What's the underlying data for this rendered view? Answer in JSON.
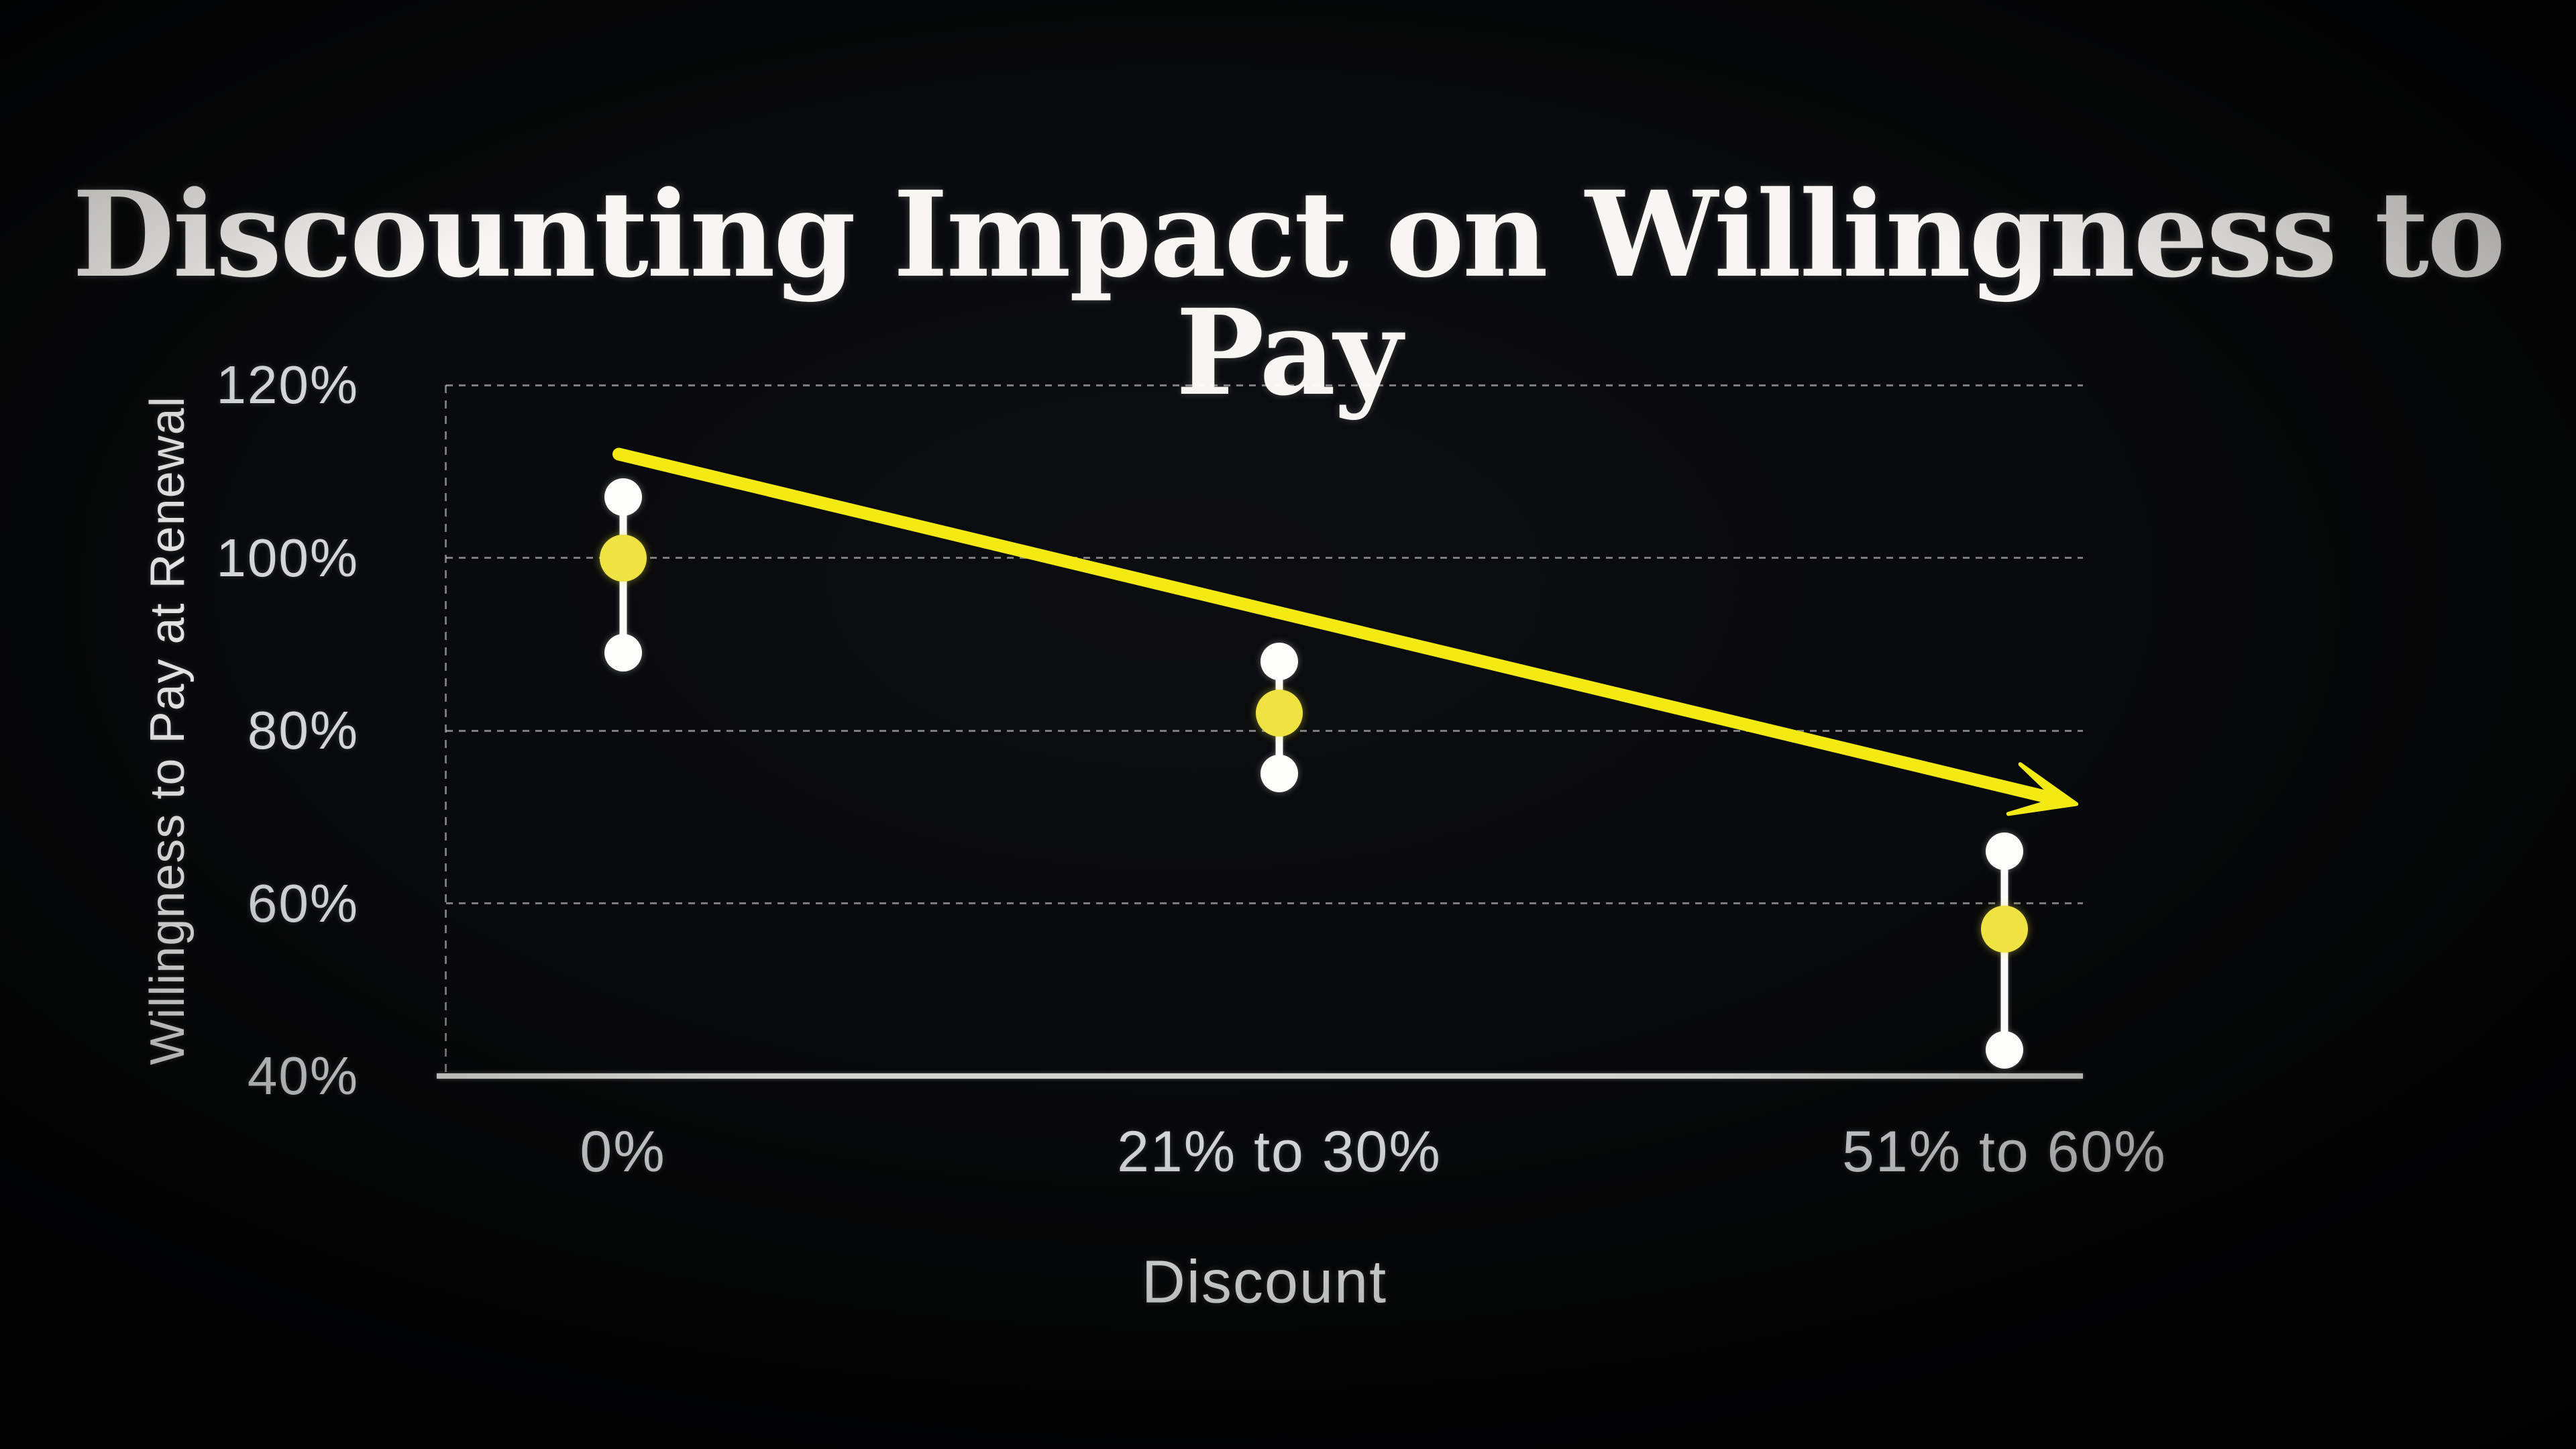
{
  "chart_data": {
    "type": "scatter",
    "subtype": "dot-range",
    "title": "Discounting Impact on Willingness to Pay",
    "xlabel": "Discount",
    "ylabel": "Willingness to Pay at Renewal",
    "categories": [
      "0%",
      "21% to 30%",
      "51% to 60%"
    ],
    "y_tick_labels": [
      "120%",
      "100%",
      "80%",
      "60%",
      "40%"
    ],
    "y_tick_values": [
      120,
      100,
      80,
      60,
      40
    ],
    "ylim": [
      40,
      120
    ],
    "grid": "horizontal dashed lines, dashed left axis, solid bottom axis",
    "legend": "none",
    "series": [
      {
        "name": "range-high",
        "marker": "dot",
        "color": "#ffffff",
        "values": [
          107,
          88,
          66
        ]
      },
      {
        "name": "median",
        "marker": "dot",
        "color": "#efe344",
        "values": [
          100,
          82,
          57
        ]
      },
      {
        "name": "range-low",
        "marker": "dot",
        "color": "#ffffff",
        "values": [
          89,
          75,
          43
        ]
      }
    ],
    "trend_arrow": {
      "style": "hand-drawn yellow arrow, declining left to right",
      "color": "#f3ea14",
      "from_value": 112,
      "to_value": 72
    }
  },
  "colors": {
    "background": "#070809",
    "title_text": "#f7f6f2",
    "axis_text": "#d3d5d6",
    "gridline": "#ffffff",
    "white_marker": "#fdfdfa",
    "yellow_marker": "#efe344",
    "arrow": "#f3ea14"
  }
}
